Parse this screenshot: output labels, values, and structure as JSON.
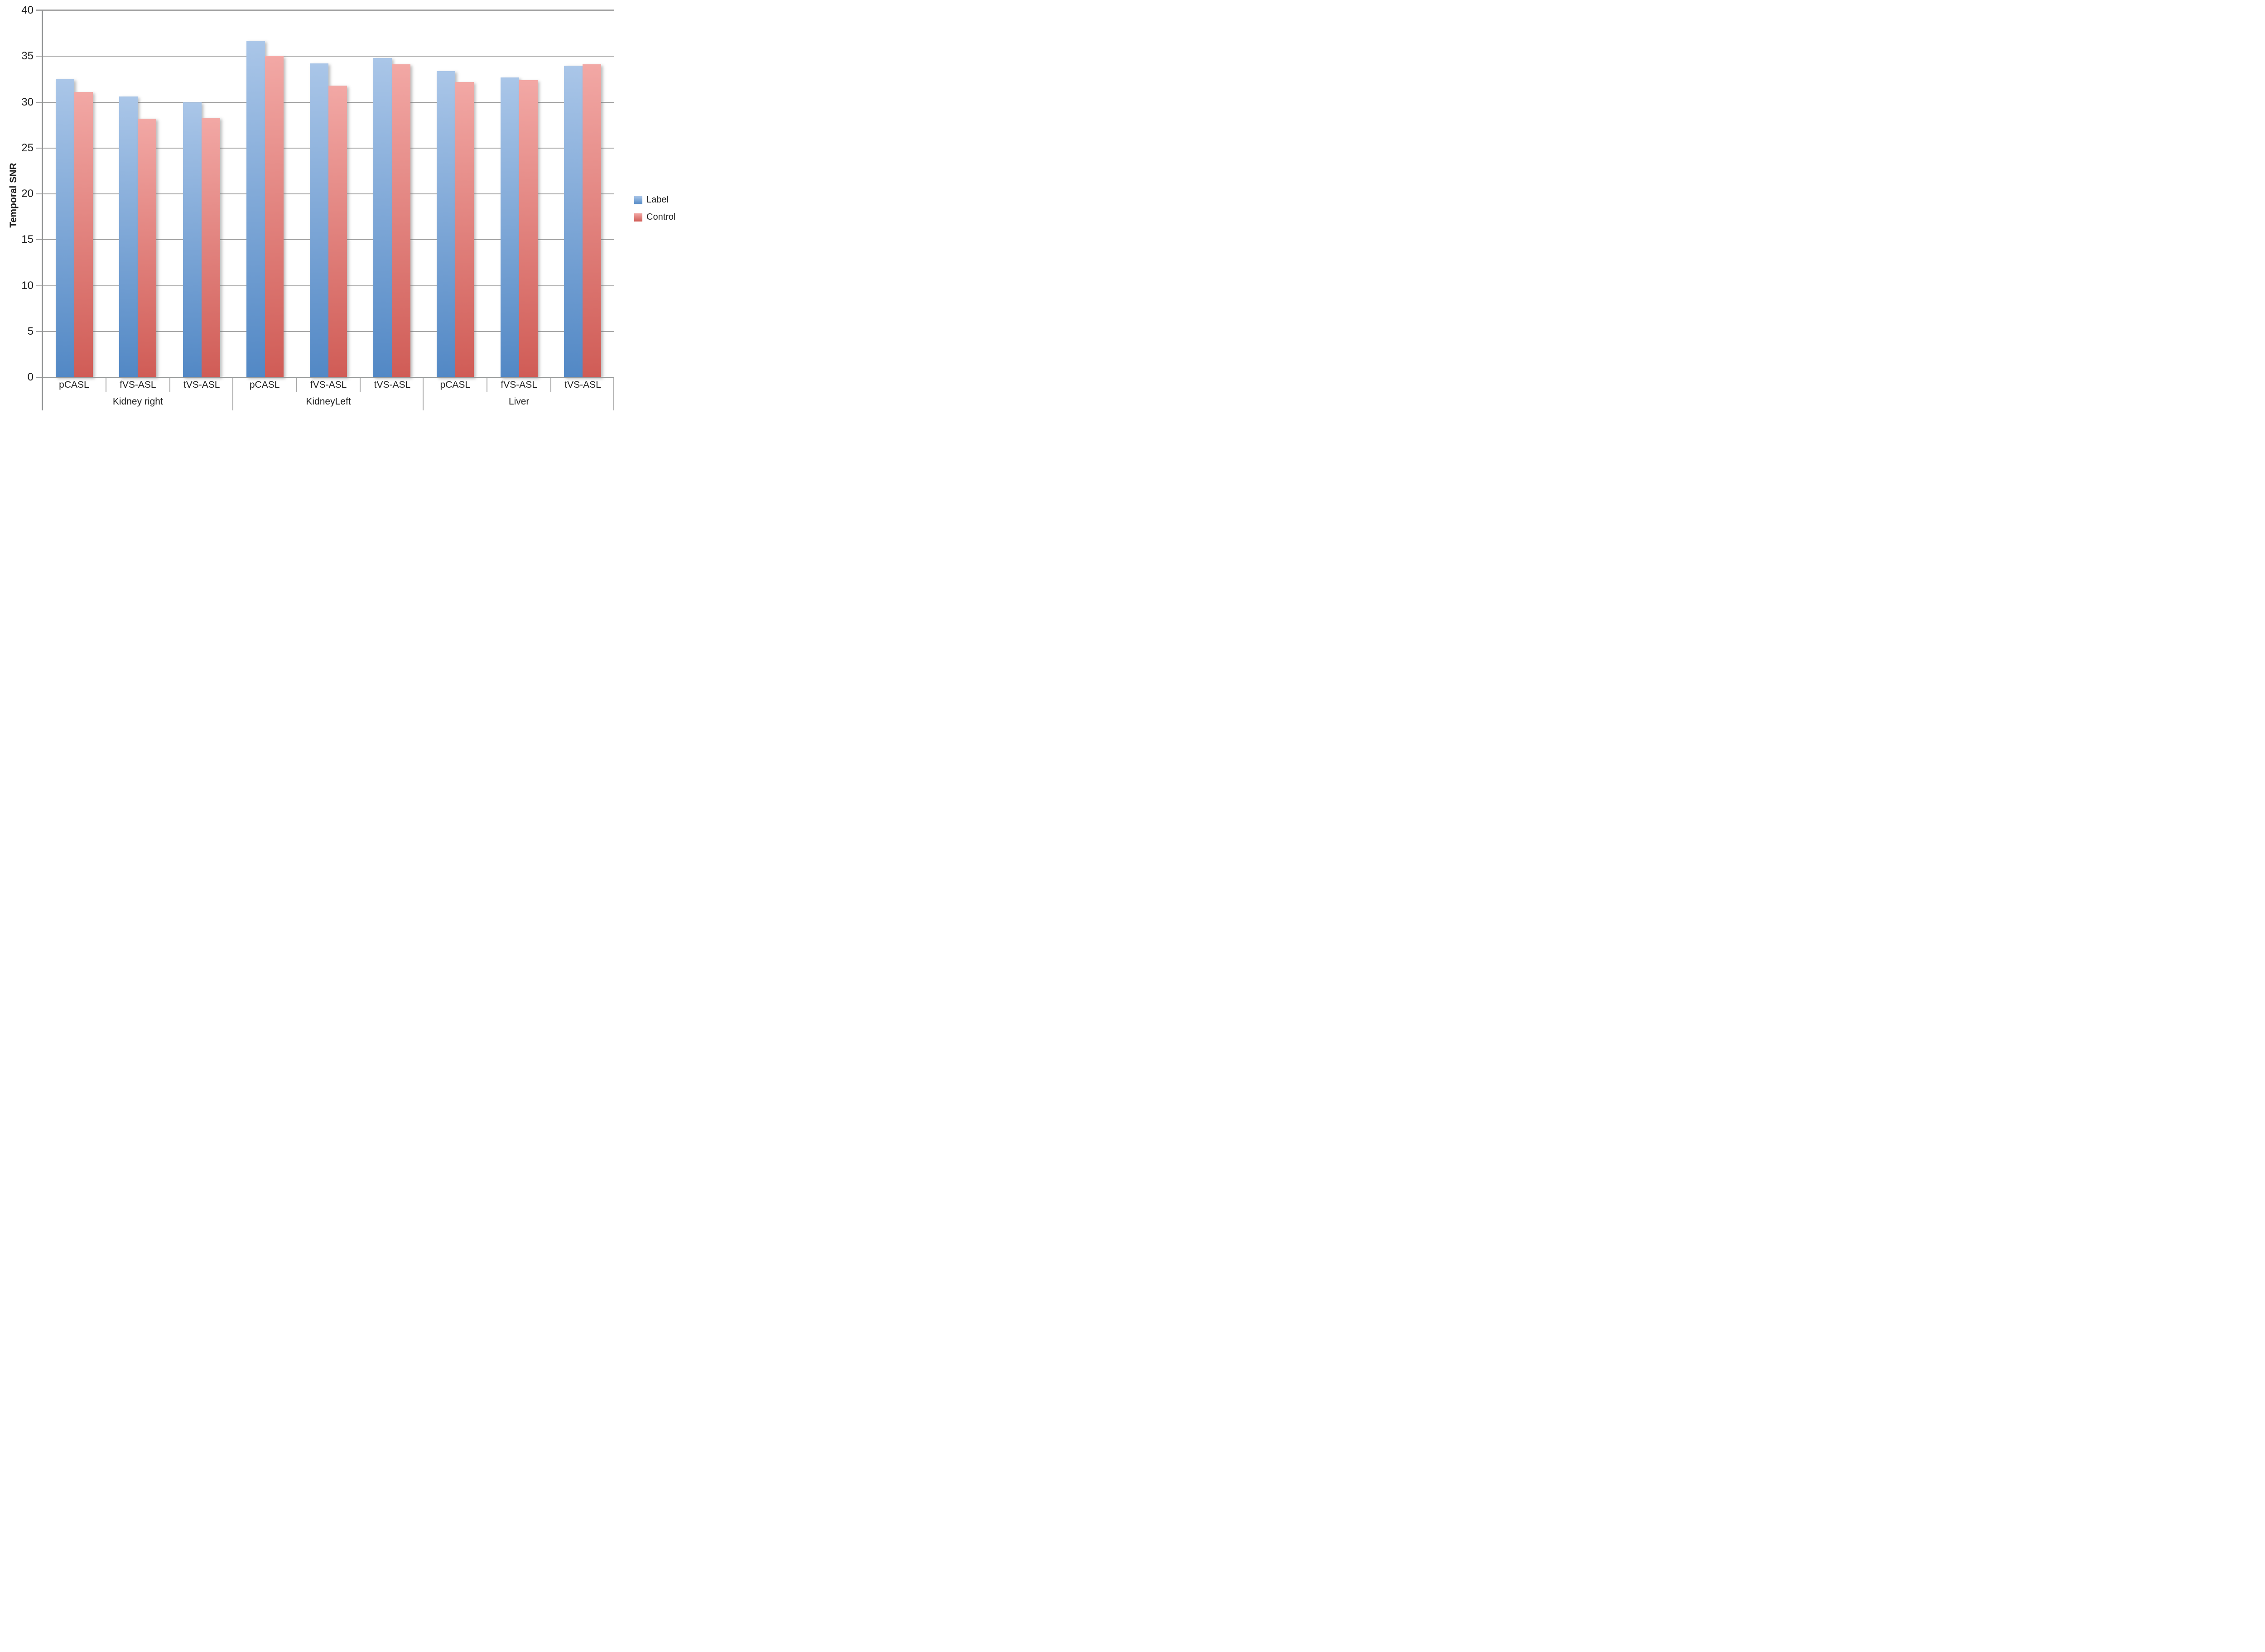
{
  "page": {
    "background": "#ffffff"
  },
  "colors": {
    "gridline": "#a6a6a6",
    "axis_line": "#8f9192",
    "baseline": "#9b9e9e",
    "text": "#1f1f1f",
    "label_top": "#aac6e8",
    "label_bottom": "#5288c5",
    "control_top": "#f2a8a5",
    "control_bottom": "#d05c56"
  },
  "chart_data": {
    "type": "bar",
    "title": "",
    "xlabel": "",
    "ylabel": "Temporal SNR",
    "ylim": [
      0,
      40
    ],
    "yticks": [
      0,
      5,
      10,
      15,
      20,
      25,
      30,
      35,
      40
    ],
    "grid": true,
    "legend_position": "right",
    "groups": [
      "Kidney right",
      "KidneyLeft",
      "Liver"
    ],
    "categories_per_group": [
      "pCASL",
      "fVS-ASL",
      "tVS-ASL"
    ],
    "categories_full": [
      "pCASL",
      "fVS-ASL",
      "tVS-ASL",
      "pCASL",
      "fVS-ASL",
      "tVS-ASL",
      "pCASL",
      "fVS-ASL",
      "tVS-ASL"
    ],
    "series": [
      {
        "name": "Label",
        "color_top": "#aac6e8",
        "color_bottom": "#5288c5",
        "values": [
          32.5,
          30.6,
          30.0,
          36.7,
          34.2,
          34.8,
          33.4,
          32.7,
          34.0
        ]
      },
      {
        "name": "Control",
        "color_top": "#f2a8a5",
        "color_bottom": "#d05c56",
        "values": [
          31.1,
          28.2,
          28.3,
          35.0,
          31.8,
          34.1,
          32.2,
          32.4,
          34.1
        ]
      }
    ]
  }
}
